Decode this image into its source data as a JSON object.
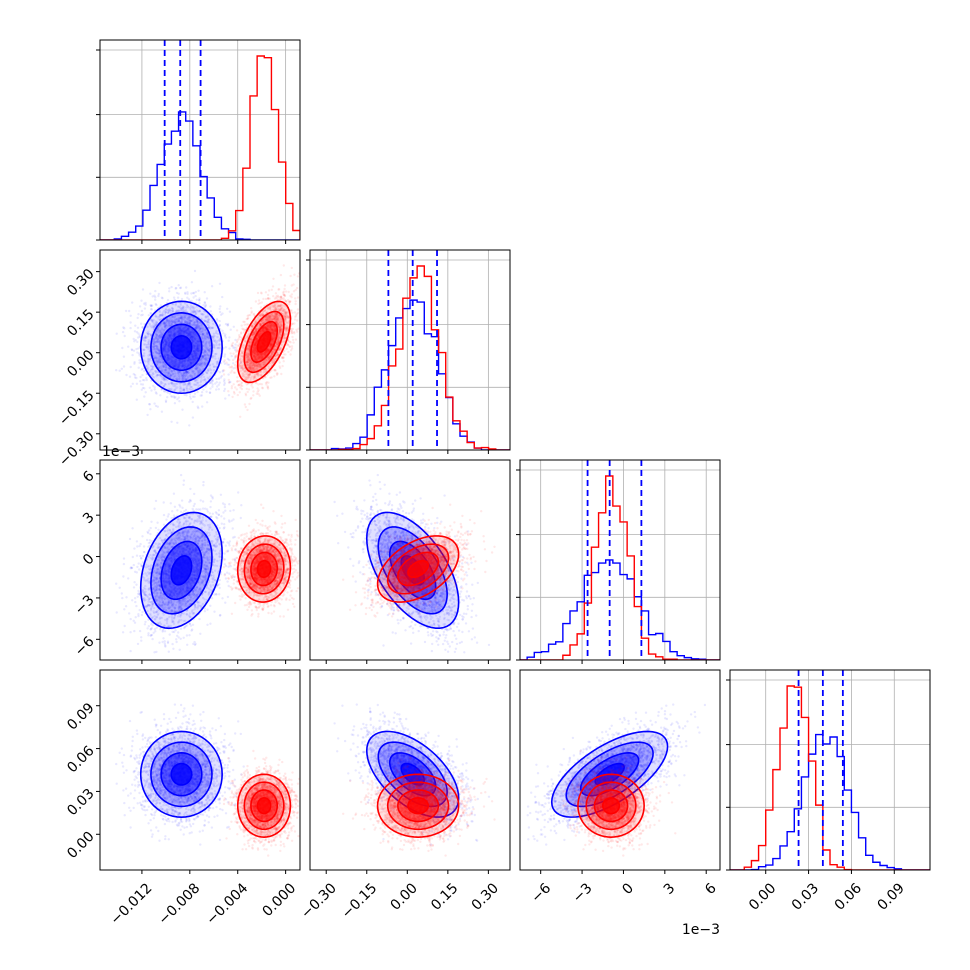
{
  "chart_data": {
    "type": "corner",
    "title": "",
    "parameters": [
      "",
      "",
      "",
      ""
    ],
    "grid": true,
    "colors": {
      "blue": "#0000ff",
      "red": "#ff0000"
    },
    "series_names": [
      "blue",
      "red"
    ],
    "axes": [
      {
        "range": [
          -0.0155,
          0.0012
        ],
        "ticks": [
          -0.012,
          -0.008,
          -0.004,
          0.0
        ],
        "tick_labels": [
          "−0.012",
          "−0.008",
          "−0.004",
          "0.000"
        ],
        "offset": ""
      },
      {
        "range": [
          -0.36,
          0.38
        ],
        "ticks": [
          -0.3,
          -0.15,
          0.0,
          0.15,
          0.3
        ],
        "tick_labels": [
          "−0.30",
          "−0.15",
          "0.00",
          "0.15",
          "0.30"
        ],
        "offset": ""
      },
      {
        "range": [
          -7.5,
          7.0
        ],
        "ticks": [
          -6,
          -3,
          0,
          3,
          6
        ],
        "tick_labels": [
          "−6",
          "−3",
          "0",
          "3",
          "6"
        ],
        "offset": "1e−3"
      },
      {
        "range": [
          -0.025,
          0.115
        ],
        "ticks": [
          0.0,
          0.03,
          0.06,
          0.09
        ],
        "tick_labels": [
          "0.00",
          "0.03",
          "0.06",
          "0.09"
        ],
        "offset": ""
      }
    ],
    "blue": {
      "means": [
        -0.0087,
        0.02,
        -1.0,
        0.042
      ],
      "sds": [
        0.0017,
        0.085,
        2.1,
        0.015
      ],
      "corr": [
        [
          1,
          0.0,
          0.3,
          0.0
        ],
        [
          0.0,
          1,
          -0.55,
          -0.55
        ],
        [
          0.3,
          -0.55,
          1,
          0.65
        ],
        [
          0.0,
          -0.55,
          0.65,
          1
        ]
      ],
      "quantiles": [
        [
          -0.0101,
          -0.0088,
          -0.0071
        ],
        [
          -0.07,
          0.02,
          0.11
        ],
        [
          -2.6,
          -1.0,
          1.3
        ],
        [
          0.023,
          0.04,
          0.054
        ]
      ]
    },
    "red": {
      "means": [
        -0.0018,
        0.04,
        -0.9,
        0.02
      ],
      "sds": [
        0.0011,
        0.075,
        1.2,
        0.011
      ],
      "corr": [
        [
          1,
          0.55,
          0.05,
          0.0
        ],
        [
          0.55,
          1,
          0.45,
          0.0
        ],
        [
          0.05,
          0.45,
          1,
          0.0
        ],
        [
          0.0,
          0.0,
          0.0,
          1
        ]
      ]
    }
  }
}
